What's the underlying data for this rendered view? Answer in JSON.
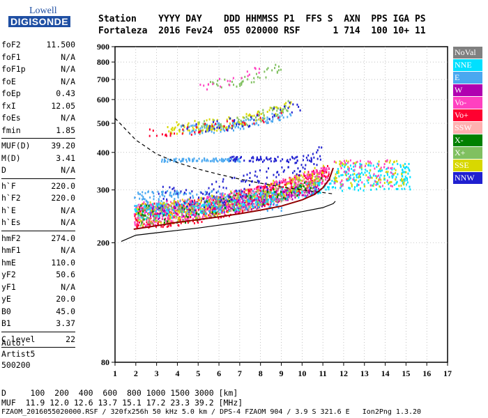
{
  "logo": {
    "line1": "Lowell",
    "line2": "DIGISONDE"
  },
  "header": {
    "line1": "Station    YYYY DAY    DDD HHMMSS P1  FFS S  AXN  PPS IGA PS",
    "line2": "Fortaleza  2016 Fev24  055 020000 RSF      1 714  100 10+ 11"
  },
  "params": [
    {
      "name": "foF2",
      "value": "11.500"
    },
    {
      "name": "foF1",
      "value": "N/A"
    },
    {
      "name": "foF1p",
      "value": "N/A"
    },
    {
      "name": "foE",
      "value": "N/A"
    },
    {
      "name": "foEp",
      "value": "0.43"
    },
    {
      "name": "fxI",
      "value": "12.05"
    },
    {
      "name": "foEs",
      "value": "N/A"
    },
    {
      "name": "fmin",
      "value": "1.85"
    },
    {
      "sep": true
    },
    {
      "name": "MUF(D)",
      "value": "39.20"
    },
    {
      "name": "M(D)",
      "value": "3.41"
    },
    {
      "name": "D",
      "value": "N/A"
    },
    {
      "sep": true
    },
    {
      "name": "h`F",
      "value": "220.0"
    },
    {
      "name": "h`F2",
      "value": "220.0"
    },
    {
      "name": "h`E",
      "value": "N/A"
    },
    {
      "name": "h`Es",
      "value": "N/A"
    },
    {
      "sep": true
    },
    {
      "name": "hmF2",
      "value": "274.0"
    },
    {
      "name": "hmF1",
      "value": "N/A"
    },
    {
      "name": "hmE",
      "value": "110.0"
    },
    {
      "name": "yF2",
      "value": "50.6"
    },
    {
      "name": "yF1",
      "value": "N/A"
    },
    {
      "name": "yE",
      "value": "20.0"
    },
    {
      "name": "B0",
      "value": "45.0"
    },
    {
      "name": "B1",
      "value": "3.37"
    },
    {
      "sep": true
    },
    {
      "name": "C-level",
      "value": "22"
    },
    {
      "sep": true
    }
  ],
  "auto": {
    "line1": "Auto:",
    "line2": "Artist5",
    "line3": "500200"
  },
  "footer": {
    "line1": "D     100  200  400  600  800 1000 1500 3000 [km]",
    "line2": "MUF  11.9 12.0 12.6 13.7 15.1 17.2 23.3 39.2 [MHz]",
    "line3": "FZAOM_2016055020000.RSF / 320fx256h 50 kHz 5.0 km / DPS-4 FZAOM 904 / 3.9 S 321.6 E   Ion2Png 1.3.20"
  },
  "chart_data": {
    "type": "scatter",
    "x_ticks": [
      1,
      2,
      3,
      4,
      5,
      6,
      7,
      8,
      9,
      10,
      11,
      12,
      13,
      14,
      15,
      16,
      17
    ],
    "y_ticks": [
      80,
      200,
      300,
      400,
      500,
      600,
      700,
      800,
      900
    ],
    "xlim": [
      1,
      17
    ],
    "y_scale": "log",
    "ylim": [
      80,
      900
    ],
    "legend": [
      {
        "label": "NoVal",
        "color": "#808080"
      },
      {
        "label": "NNE",
        "color": "#00e0ff"
      },
      {
        "label": "E",
        "color": "#4aa8f0"
      },
      {
        "label": "W",
        "color": "#b000b0"
      },
      {
        "label": "Vo-",
        "color": "#ff40c0"
      },
      {
        "label": "Vo+",
        "color": "#ff0030"
      },
      {
        "label": "SSW",
        "color": "#ffb0b0"
      },
      {
        "label": "X-",
        "color": "#008000"
      },
      {
        "label": "X+",
        "color": "#80c060"
      },
      {
        "label": "SSE",
        "color": "#d8d800"
      },
      {
        "label": "NNW",
        "color": "#2020d0"
      }
    ],
    "clusters": [
      {
        "color": "#ff0030",
        "x0": 1.9,
        "x1": 11.3,
        "y0": 225,
        "y1": 360,
        "n": 700,
        "trend": 1
      },
      {
        "color": "#ff40c0",
        "x0": 1.9,
        "x1": 11.3,
        "y0": 230,
        "y1": 360,
        "n": 500,
        "trend": 1
      },
      {
        "color": "#b000b0",
        "x0": 2.5,
        "x1": 10.8,
        "y0": 240,
        "y1": 320,
        "n": 300,
        "trend": 1
      },
      {
        "color": "#4aa8f0",
        "x0": 1.9,
        "x1": 9.0,
        "y0": 255,
        "y1": 300,
        "n": 260,
        "trend": 0
      },
      {
        "color": "#00e0ff",
        "x0": 1.9,
        "x1": 11.5,
        "y0": 240,
        "y1": 330,
        "n": 250,
        "trend": 1
      },
      {
        "color": "#d8d800",
        "x0": 2.0,
        "x1": 11.0,
        "y0": 230,
        "y1": 360,
        "n": 220,
        "trend": 1
      },
      {
        "color": "#80c060",
        "x0": 2.0,
        "x1": 11.0,
        "y0": 230,
        "y1": 340,
        "n": 140,
        "trend": 1
      },
      {
        "color": "#2020d0",
        "x0": 3.0,
        "x1": 11.0,
        "y0": 250,
        "y1": 420,
        "n": 140,
        "trend": 1
      },
      {
        "color": "#008000",
        "x0": 2.0,
        "x1": 11.0,
        "y0": 230,
        "y1": 340,
        "n": 60,
        "trend": 1
      },
      {
        "color": "#ffb0b0",
        "x0": 2.0,
        "x1": 11.0,
        "y0": 230,
        "y1": 340,
        "n": 50,
        "trend": 1
      },
      {
        "color": "#4aa8f0",
        "x0": 3.2,
        "x1": 7.0,
        "y0": 375,
        "y1": 385,
        "n": 90,
        "trend": 0
      },
      {
        "color": "#2020d0",
        "x0": 6.5,
        "x1": 10.5,
        "y0": 375,
        "y1": 390,
        "n": 60,
        "trend": 0
      },
      {
        "color": "#00e0ff",
        "x0": 11.5,
        "x1": 15.2,
        "y0": 300,
        "y1": 370,
        "n": 180,
        "trend": 0
      },
      {
        "color": "#d8d800",
        "x0": 11.5,
        "x1": 15.0,
        "y0": 310,
        "y1": 380,
        "n": 80,
        "trend": 0
      },
      {
        "color": "#ff40c0",
        "x0": 11.5,
        "x1": 14.5,
        "y0": 310,
        "y1": 380,
        "n": 60,
        "trend": 0
      },
      {
        "color": "#4aa8f0",
        "x0": 4.0,
        "x1": 9.5,
        "y0": 460,
        "y1": 560,
        "n": 120,
        "trend": 1
      },
      {
        "color": "#d8d800",
        "x0": 3.5,
        "x1": 9.5,
        "y0": 460,
        "y1": 600,
        "n": 120,
        "trend": 1
      },
      {
        "color": "#80c060",
        "x0": 5.0,
        "x1": 9.5,
        "y0": 470,
        "y1": 600,
        "n": 60,
        "trend": 1
      },
      {
        "color": "#ff0030",
        "x0": 2.5,
        "x1": 9.0,
        "y0": 450,
        "y1": 560,
        "n": 40,
        "trend": 1
      },
      {
        "color": "#2020d0",
        "x0": 4.0,
        "x1": 10.5,
        "y0": 460,
        "y1": 620,
        "n": 40,
        "trend": 1
      },
      {
        "color": "#80c060",
        "x0": 5.5,
        "x1": 9.0,
        "y0": 650,
        "y1": 800,
        "n": 40,
        "trend": 1
      },
      {
        "color": "#ff40c0",
        "x0": 5.0,
        "x1": 8.0,
        "y0": 650,
        "y1": 790,
        "n": 20,
        "trend": 1
      }
    ],
    "virtual_height_curve": [
      [
        1.9,
        222
      ],
      [
        3,
        228
      ],
      [
        4,
        234
      ],
      [
        5,
        239
      ],
      [
        6,
        244
      ],
      [
        7,
        250
      ],
      [
        8,
        257
      ],
      [
        9,
        265
      ],
      [
        10,
        278
      ],
      [
        10.6,
        290
      ],
      [
        11,
        305
      ],
      [
        11.3,
        325
      ],
      [
        11.5,
        355
      ]
    ],
    "profile_curve_lower": [
      [
        1.3,
        202
      ],
      [
        2,
        212
      ],
      [
        3,
        216
      ],
      [
        4,
        220
      ],
      [
        5,
        224
      ],
      [
        6,
        229
      ],
      [
        7,
        234
      ],
      [
        8,
        240
      ],
      [
        9,
        246
      ],
      [
        10,
        254
      ],
      [
        11,
        262
      ],
      [
        11.5,
        270
      ],
      [
        11.6,
        275
      ]
    ],
    "dashed_curve": [
      [
        1.0,
        520
      ],
      [
        2,
        440
      ],
      [
        3,
        395
      ],
      [
        4,
        370
      ],
      [
        5,
        352
      ],
      [
        6,
        338
      ],
      [
        7,
        326
      ],
      [
        8,
        316
      ],
      [
        9,
        307
      ],
      [
        10,
        300
      ],
      [
        11,
        294
      ],
      [
        11.5,
        291
      ]
    ]
  }
}
